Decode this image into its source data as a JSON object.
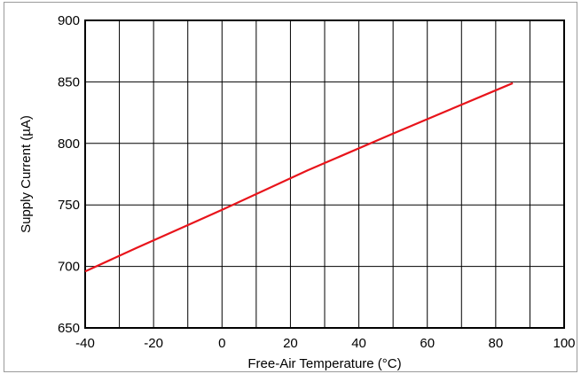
{
  "chart_data": {
    "type": "line",
    "xlabel": "Free-Air Temperature (°C)",
    "ylabel": "Supply Current (µA)",
    "xlim": [
      -40,
      100
    ],
    "ylim": [
      650,
      900
    ],
    "x_ticks": [
      -40,
      -20,
      0,
      20,
      40,
      60,
      80,
      100
    ],
    "y_ticks": [
      650,
      700,
      750,
      800,
      850,
      900
    ],
    "x_tick_labels": [
      "-40",
      "-20",
      "0",
      "20",
      "40",
      "60",
      "80",
      "100"
    ],
    "y_tick_labels": [
      "650",
      "700",
      "750",
      "800",
      "850",
      "900"
    ],
    "grid": true,
    "x_grid_step": 10,
    "y_grid_step": 50,
    "series": [
      {
        "color": "#e8141b",
        "x": [
          -40,
          -25,
          0,
          25,
          50,
          85
        ],
        "y": [
          696,
          715,
          746,
          778,
          808,
          849
        ]
      }
    ]
  }
}
